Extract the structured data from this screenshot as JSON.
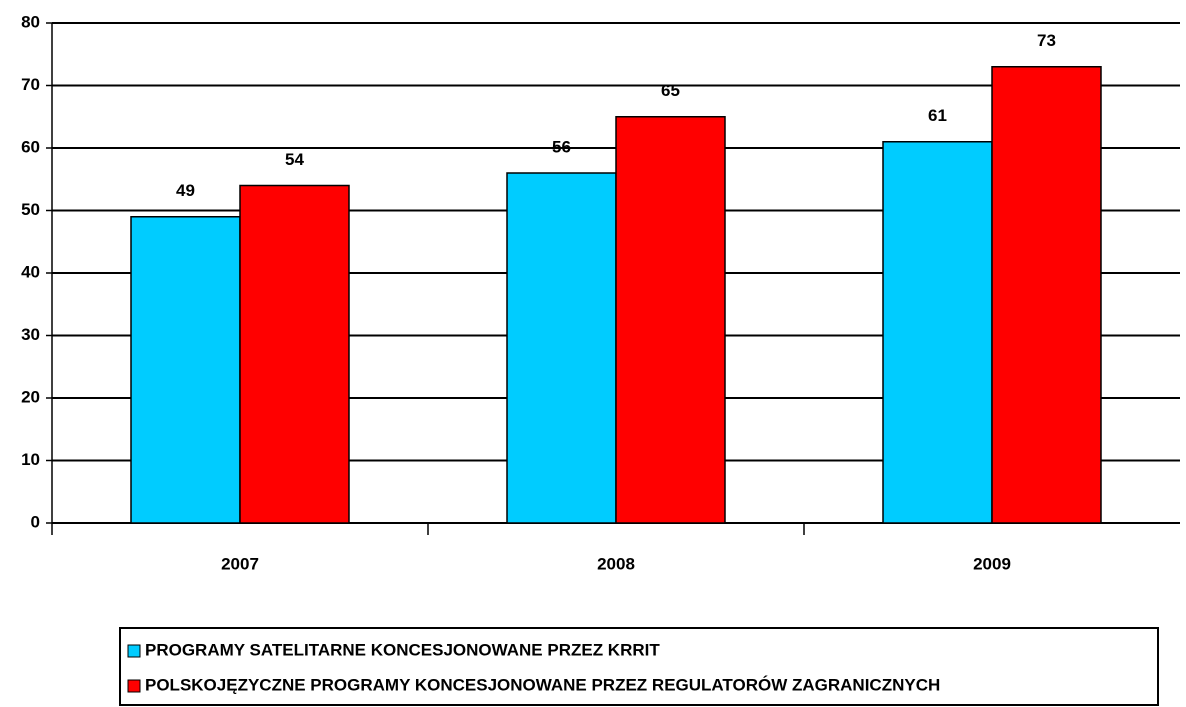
{
  "chart_data": {
    "type": "bar",
    "categories": [
      "2007",
      "2008",
      "2009"
    ],
    "series": [
      {
        "name": "PROGRAMY SATELITARNE KONCESJONOWANE PRZEZ KRRIT",
        "color": "#00ccff",
        "values": [
          49,
          56,
          61
        ]
      },
      {
        "name": "POLSKOJĘZYCZNE PROGRAMY KONCESJONOWANE PRZEZ REGULATORÓW ZAGRANICZNYCH",
        "color": "#ff0000",
        "values": [
          54,
          65,
          73
        ]
      }
    ],
    "ylim": [
      0,
      80
    ],
    "yticks": [
      0,
      10,
      20,
      30,
      40,
      50,
      60,
      70,
      80
    ],
    "grid": true,
    "legend": "bottom"
  }
}
